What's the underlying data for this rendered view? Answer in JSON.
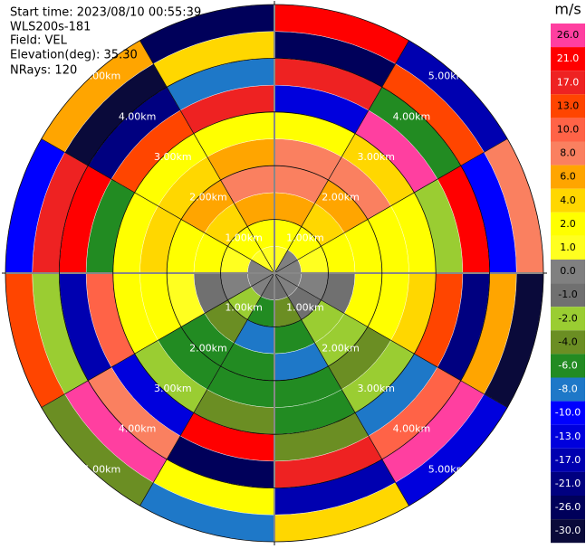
{
  "chart_data": {
    "type": "polar",
    "annotations": [
      "Start time: 2023/08/10 00:55:39",
      "WLS200s-181",
      "Field: VEL",
      "Elevation(deg): 35.30",
      "NRays: 120"
    ],
    "rlim": [
      0,
      5
    ],
    "range_rings": [
      {
        "value": 1,
        "label": "1.00km"
      },
      {
        "value": 2,
        "label": "2.00km"
      },
      {
        "value": 3,
        "label": "3.00km"
      },
      {
        "value": 4,
        "label": "4.00km"
      },
      {
        "value": 5,
        "label": "5.00km"
      }
    ],
    "gates": [
      [
        1,
        2,
        6,
        8,
        8,
        2,
        -13,
        17,
        -26,
        21
      ],
      [
        0,
        2,
        4,
        6,
        8,
        4,
        26,
        -6,
        13,
        -17
      ],
      [
        0,
        1,
        2,
        2,
        2,
        2,
        -2,
        21,
        -10,
        8
      ],
      [
        0,
        0,
        -1,
        2,
        2,
        4,
        13,
        -21,
        6,
        -30
      ],
      [
        0,
        -1,
        -2,
        -2,
        -4,
        -2,
        -8,
        10,
        26,
        -13
      ],
      [
        -1,
        -4,
        -6,
        -8,
        -6,
        -6,
        -4,
        17,
        -17,
        4
      ],
      [
        -1,
        -6,
        -8,
        -6,
        -6,
        -4,
        21,
        -26,
        2,
        -8
      ],
      [
        0,
        -2,
        -4,
        -6,
        -6,
        -2,
        -13,
        8,
        26,
        -4
      ],
      [
        0,
        0,
        -1,
        1,
        2,
        2,
        10,
        -17,
        -2,
        13
      ],
      [
        0,
        1,
        2,
        2,
        4,
        2,
        -6,
        21,
        17,
        -10
      ],
      [
        1,
        2,
        4,
        6,
        4,
        2,
        13,
        -21,
        -30,
        6
      ],
      [
        1,
        2,
        6,
        8,
        6,
        2,
        17,
        -8,
        4,
        -26
      ]
    ],
    "colorbar": {
      "label": "m/s",
      "ticks": [
        {
          "value": 26,
          "label": "26.0"
        },
        {
          "value": 21,
          "label": "21.0"
        },
        {
          "value": 17,
          "label": "17.0"
        },
        {
          "value": 13,
          "label": "13.0"
        },
        {
          "value": 10,
          "label": "10.0"
        },
        {
          "value": 8,
          "label": "8.0"
        },
        {
          "value": 6,
          "label": "6.0"
        },
        {
          "value": 4,
          "label": "4.0"
        },
        {
          "value": 2,
          "label": "2.0"
        },
        {
          "value": 1,
          "label": "1.0"
        },
        {
          "value": 0,
          "label": "0.0"
        },
        {
          "value": -1,
          "label": "-1.0"
        },
        {
          "value": -2,
          "label": "-2.0"
        },
        {
          "value": -4,
          "label": "-4.0"
        },
        {
          "value": -6,
          "label": "-6.0"
        },
        {
          "value": -8,
          "label": "-8.0"
        },
        {
          "value": -10,
          "label": "-10.0"
        },
        {
          "value": -13,
          "label": "-13.0"
        },
        {
          "value": -17,
          "label": "-17.0"
        },
        {
          "value": -21,
          "label": "-21.0"
        },
        {
          "value": -26,
          "label": "-26.0"
        },
        {
          "value": -30,
          "label": "-30.0"
        }
      ],
      "colors": [
        "#ff3fa0",
        "#ff0000",
        "#ee2222",
        "#ff4500",
        "#ff6347",
        "#fa8060",
        "#ffa500",
        "#ffd700",
        "#ffff00",
        "#ffff20",
        "#808080",
        "#707070",
        "#9acd32",
        "#6b8e23",
        "#228b22",
        "#1e78c8",
        "#0000ff",
        "#0000dd",
        "#0000b0",
        "#000080",
        "#00005a",
        "#0a0a3a"
      ]
    }
  }
}
